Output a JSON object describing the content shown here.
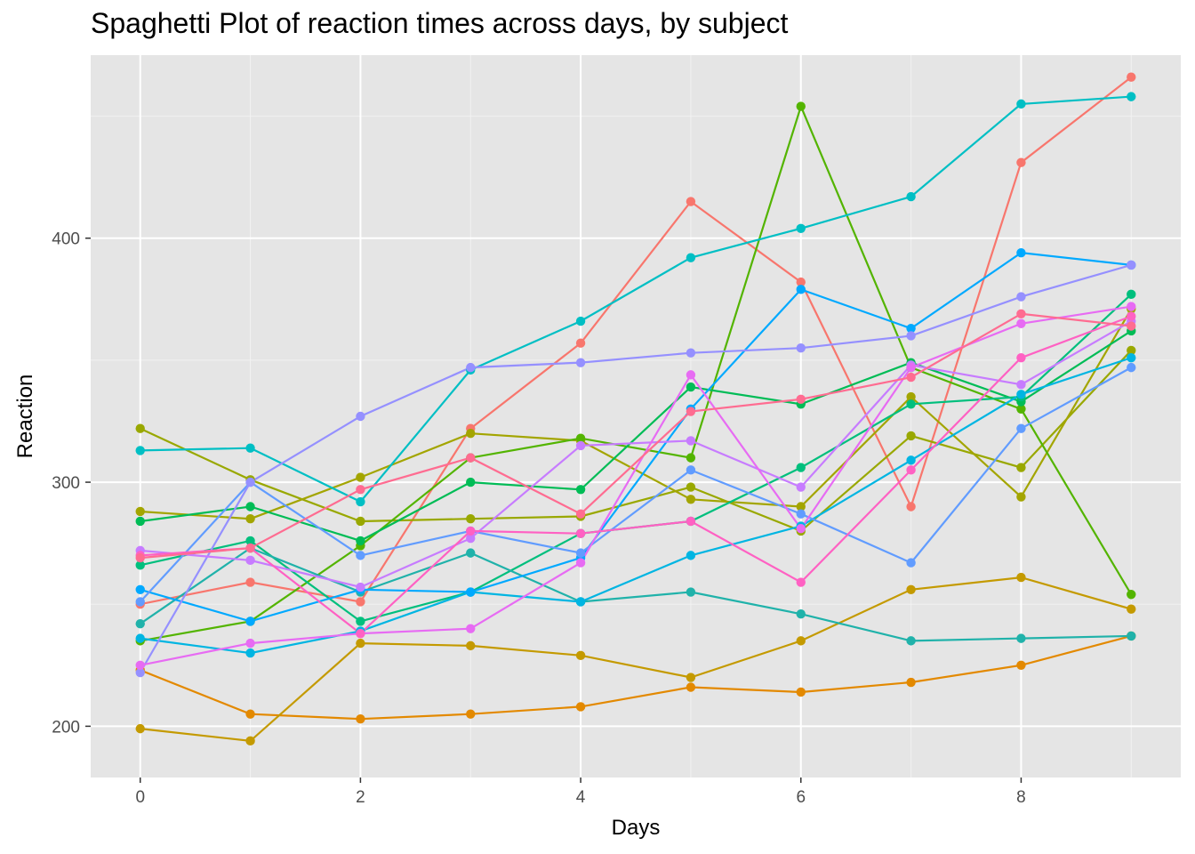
{
  "chart_data": {
    "type": "line",
    "title": "Spaghetti Plot of reaction times across days, by subject",
    "xlabel": "Days",
    "ylabel": "Reaction",
    "x": [
      0,
      1,
      2,
      3,
      4,
      5,
      6,
      7,
      8,
      9
    ],
    "xlim": [
      -0.45,
      9.45
    ],
    "ylim": [
      179,
      475
    ],
    "x_ticks": [
      0,
      2,
      4,
      6,
      8
    ],
    "y_ticks": [
      200,
      300,
      400
    ],
    "grid": true,
    "legend": "none",
    "background": "#e5e5e5",
    "series": [
      {
        "color": "#f8766d",
        "values": [
          250,
          259,
          251,
          322,
          357,
          415,
          382,
          290,
          431,
          466
        ]
      },
      {
        "color": "#e38900",
        "values": [
          223,
          205,
          203,
          205,
          208,
          216,
          214,
          218,
          225,
          237
        ]
      },
      {
        "color": "#c49a00",
        "values": [
          199,
          194,
          234,
          233,
          229,
          220,
          235,
          256,
          261,
          248
        ]
      },
      {
        "color": "#99a800",
        "values": [
          322,
          301,
          284,
          285,
          286,
          298,
          280,
          319,
          306,
          354
        ]
      },
      {
        "color": "#a3a500",
        "values": [
          288,
          285,
          302,
          320,
          317,
          293,
          290,
          335,
          294,
          371
        ]
      },
      {
        "color": "#53b400",
        "values": [
          235,
          243,
          274,
          310,
          318,
          310,
          454,
          347,
          330,
          254
        ]
      },
      {
        "color": "#00bc56",
        "values": [
          284,
          290,
          276,
          300,
          297,
          339,
          332,
          349,
          333,
          362
        ]
      },
      {
        "color": "#00bf7d",
        "values": [
          266,
          276,
          243,
          255,
          279,
          284,
          306,
          332,
          335,
          377
        ]
      },
      {
        "color": "#20b2aa",
        "values": [
          242,
          273,
          255,
          271,
          251,
          255,
          246,
          235,
          236,
          237
        ]
      },
      {
        "color": "#00bfc4",
        "values": [
          313,
          314,
          292,
          346,
          366,
          392,
          404,
          417,
          455,
          458
        ]
      },
      {
        "color": "#00b5e2",
        "values": [
          236,
          230,
          239,
          255,
          251,
          270,
          282,
          309,
          336,
          351
        ]
      },
      {
        "color": "#00a9ff",
        "values": [
          256,
          243,
          256,
          255,
          269,
          330,
          379,
          363,
          394,
          389
        ]
      },
      {
        "color": "#619cff",
        "values": [
          251,
          300,
          270,
          280,
          271,
          305,
          287,
          267,
          322,
          347
        ]
      },
      {
        "color": "#9590ff",
        "values": [
          222,
          300,
          327,
          347,
          349,
          353,
          355,
          360,
          376,
          389
        ]
      },
      {
        "color": "#c77cff",
        "values": [
          272,
          268,
          257,
          277,
          315,
          317,
          298,
          348,
          340,
          366
        ]
      },
      {
        "color": "#e76bf3",
        "values": [
          225,
          234,
          238,
          240,
          267,
          344,
          281,
          347,
          365,
          372
        ]
      },
      {
        "color": "#ff61c3",
        "values": [
          270,
          273,
          238,
          280,
          279,
          284,
          259,
          305,
          351,
          368
        ]
      },
      {
        "color": "#ff6c91",
        "values": [
          269,
          273,
          297,
          310,
          287,
          329,
          334,
          343,
          369,
          364
        ]
      }
    ]
  }
}
